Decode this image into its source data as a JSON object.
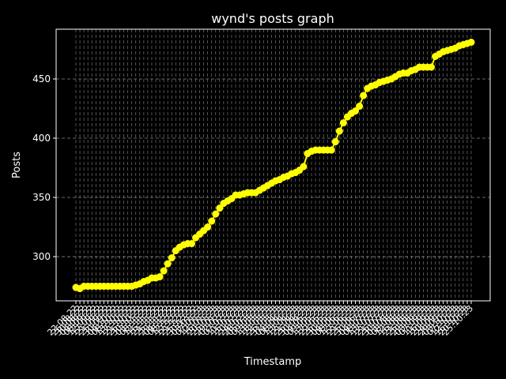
{
  "chart_data": {
    "type": "line",
    "title": "wynd's posts graph",
    "xlabel": "Timestamp",
    "ylabel": "Posts",
    "categories": [
      "22.08.22",
      "26.08.22",
      "30.08.22",
      "04.09.22",
      "08.09.22",
      "12.09.22",
      "17.09.22",
      "21.09.22",
      "25.09.22",
      "30.09.22",
      "04.10.22",
      "08.10.22",
      "13.10.22",
      "17.10.22",
      "21.10.22",
      "26.10.22",
      "30.10.22",
      "03.11.22",
      "08.11.22",
      "12.11.22",
      "16.11.22",
      "21.11.22",
      "25.11.22",
      "29.11.22",
      "04.12.22",
      "08.12.22",
      "12.12.22",
      "17.12.22",
      "21.12.22",
      "25.12.22",
      "30.12.22",
      "03.01.23",
      "07.01.23",
      "12.01.23",
      "16.01.23",
      "20.01.23",
      "25.01.23",
      "29.01.23",
      "02.02.23",
      "07.02.23",
      "11.02.23",
      "15.02.23",
      "20.02.23",
      "24.02.23",
      "28.02.23",
      "05.03.23",
      "09.03.23",
      "13.03.23",
      "18.03.23",
      "22.03.23",
      "26.03.23",
      "31.03.23",
      "04.04.23",
      "08.04.23",
      "13.04.23",
      "17.04.23",
      "21.04.23",
      "26.04.23",
      "30.04.23",
      "04.05.23",
      "09.05.23",
      "13.05.23",
      "17.05.23",
      "22.05.23",
      "26.05.23",
      "30.05.23",
      "04.06.23",
      "08.06.23",
      "12.06.23",
      "17.06.23",
      "21.06.23",
      "25.06.23",
      "30.06.23",
      "04.07.23",
      "08.07.23",
      "13.07.23",
      "17.07.23",
      "21.07.23",
      "26.07.23",
      "30.07.23",
      "03.08.23",
      "08.08.23",
      "12.08.23",
      "16.08.23",
      "21.08.23",
      "25.08.23",
      "29.08.23",
      "03.09.23",
      "07.09.23",
      "11.09.23",
      "16.09.23",
      "20.09.23",
      "24.09.23",
      "29.09.23",
      "03.10.23",
      "07.10.23",
      "12.10.23",
      "16.10.23",
      "20.10.23",
      "25.10.23"
    ],
    "series": [
      {
        "name": "Posts",
        "color": "#ffff00",
        "values": [
          274,
          273,
          275,
          275,
          275,
          275,
          275,
          275,
          275,
          275,
          275,
          275,
          275,
          275,
          275,
          276,
          277,
          279,
          280,
          282,
          282,
          283,
          288,
          294,
          299,
          305,
          308,
          310,
          311,
          311,
          316,
          319,
          322,
          325,
          330,
          336,
          341,
          345,
          347,
          349,
          352,
          352,
          353,
          354,
          354,
          354,
          356,
          358,
          360,
          362,
          364,
          365,
          367,
          368,
          370,
          371,
          373,
          376,
          387,
          389,
          390,
          390,
          390,
          390,
          390,
          397,
          406,
          413,
          418,
          421,
          423,
          427,
          436,
          442,
          444,
          445,
          447,
          448,
          449,
          450,
          452,
          454,
          455,
          455,
          457,
          458,
          460,
          460,
          460,
          460,
          469,
          471,
          473,
          474,
          475,
          476,
          478,
          479,
          480,
          481
        ]
      }
    ],
    "ylim": [
      262.7,
      492
    ],
    "yticks": [
      300,
      350,
      400,
      450
    ],
    "grid": true
  }
}
